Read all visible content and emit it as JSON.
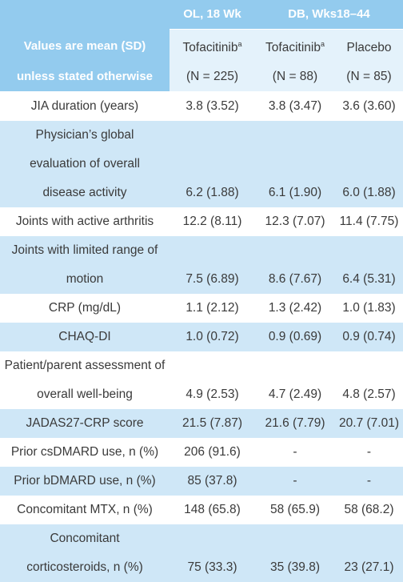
{
  "header": {
    "top_left_line1": "Values are mean (SD)",
    "top_left_line2": "unless stated otherwise",
    "group_ol": "OL, 18 Wk",
    "group_db": "DB, Wks18–44",
    "col1_name": "Tofacitinib",
    "col1_sup": "a",
    "col1_n": "(N = 225)",
    "col2_name": "Tofacitinib",
    "col2_sup": "a",
    "col2_n": "(N = 88)",
    "col3_name": "Placebo",
    "col3_n": "(N = 85)"
  },
  "rows": [
    {
      "label": "JIA duration (years)",
      "v1": "3.8 (3.52)",
      "v2": "3.8 (3.47)",
      "v3": "3.6 (3.60)"
    },
    {
      "label": "Physician’s global evaluation of overall disease activity",
      "v1": "6.2 (1.88)",
      "v2": "6.1 (1.90)",
      "v3": "6.0 (1.88)"
    },
    {
      "label": "Joints with active arthritis",
      "v1": "12.2 (8.11)",
      "v2": "12.3 (7.07)",
      "v3": "11.4 (7.75)"
    },
    {
      "label": "Joints with limited range of motion",
      "v1": "7.5 (6.89)",
      "v2": "8.6 (7.67)",
      "v3": "6.4 (5.31)"
    },
    {
      "label": "CRP (mg/dL)",
      "v1": "1.1 (2.12)",
      "v2": "1.3 (2.42)",
      "v3": "1.0 (1.83)"
    },
    {
      "label": "CHAQ-DI",
      "v1": "1.0 (0.72)",
      "v2": "0.9 (0.69)",
      "v3": "0.9 (0.74)"
    },
    {
      "label": "Patient/parent assessment of overall well-being",
      "v1": "4.9 (2.53)",
      "v2": "4.7 (2.49)",
      "v3": "4.8 (2.57)"
    },
    {
      "label": "JADAS27-CRP score",
      "v1": "21.5 (7.87)",
      "v2": "21.6 (7.79)",
      "v3": "20.7 (7.01)"
    },
    {
      "label": "Prior csDMARD use, n (%)",
      "v1": "206 (91.6)",
      "v2": "-",
      "v3": "-"
    },
    {
      "label": "Prior bDMARD use, n (%)",
      "v1": "85 (37.8)",
      "v2": "-",
      "v3": "-"
    },
    {
      "label": "Concomitant MTX, n (%)",
      "v1": "148 (65.8)",
      "v2": "58 (65.9)",
      "v3": "58 (68.2)"
    },
    {
      "label": "Concomitant corticosteroids, n (%)",
      "v1": "75 (33.3)",
      "v2": "35 (39.8)",
      "v3": "23 (27.1)"
    }
  ]
}
